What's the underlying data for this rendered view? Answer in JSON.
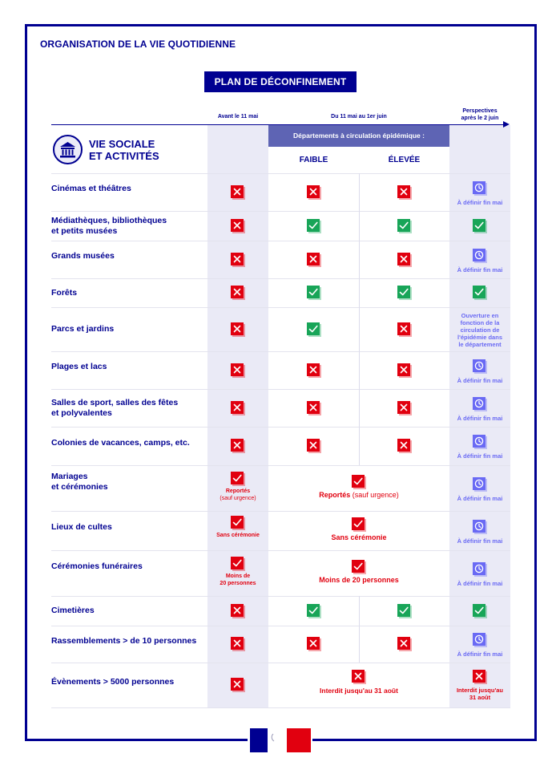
{
  "header": {
    "org_title": "ORGANISATION DE LA VIE QUOTIDIENNE",
    "plan_title": "PLAN DE DÉCONFINEMENT"
  },
  "columns": {
    "before": "Avant le 11 mai",
    "during": "Du 11 mai au 1er juin",
    "perspectives_line1": "Perspectives",
    "perspectives_line2": "après le 2 juin",
    "epidemic_header": "Départements à circulation épidémique :",
    "low": "FAIBLE",
    "high": "ÉLEVÉE"
  },
  "section": {
    "title_line1": "VIE SOCIALE",
    "title_line2": "ET ACTIVITÉS",
    "icon": "museum-building-icon"
  },
  "colors": {
    "blue": "#000091",
    "red": "#e1000f",
    "green": "#18a558",
    "perspective_blue": "#6a6af4"
  },
  "rows": [
    {
      "label1": "Cinémas et théâtres",
      "label2": "",
      "marks": [
        "no",
        "no",
        "no",
        "pending"
      ],
      "perspective_note": "À définir fin mai"
    },
    {
      "label1": "Médiathèques, bibliothèques",
      "label2": "et petits musées",
      "marks": [
        "no",
        "yes",
        "yes",
        "yes"
      ],
      "perspective_note": ""
    },
    {
      "label1": "Grands musées",
      "label2": "",
      "marks": [
        "no",
        "no",
        "no",
        "pending"
      ],
      "perspective_note": "À définir fin mai"
    },
    {
      "label1": "Forêts",
      "label2": "",
      "marks": [
        "no",
        "yes",
        "yes",
        "yes"
      ],
      "perspective_note": ""
    },
    {
      "label1": "Parcs et jardins",
      "label2": "",
      "marks": [
        "no",
        "yes",
        "no",
        "text"
      ],
      "perspective_note": "",
      "perspective_text": [
        "Ouverture en",
        "fonction de la",
        "circulation de",
        "l'épidémie dans",
        "le département"
      ]
    },
    {
      "label1": "Plages et lacs",
      "label2": "",
      "marks": [
        "no",
        "no",
        "no",
        "pending"
      ],
      "perspective_note": "À définir fin mai"
    },
    {
      "label1": "Salles de sport, salles des fêtes",
      "label2": "et polyvalentes",
      "marks": [
        "no",
        "no",
        "no",
        "pending"
      ],
      "perspective_note": "À définir fin mai"
    },
    {
      "label1": "Colonies de vacances, camps, etc.",
      "label2": "",
      "marks": [
        "no",
        "no",
        "no",
        "pending"
      ],
      "perspective_note": "À définir fin mai"
    },
    {
      "label1": "Mariages",
      "label2": "et cérémonies",
      "marks": [
        "partial",
        "partial-wide",
        "pending"
      ],
      "before_note1": "Reportés",
      "before_note2": "(sauf urgence)",
      "during_note_bold": "Reportés",
      "during_note_thin": " (sauf urgence)",
      "perspective_note": "À définir fin mai"
    },
    {
      "label1": "Lieux de cultes",
      "label2": "",
      "marks": [
        "partial",
        "partial-wide",
        "pending"
      ],
      "before_note1": "Sans cérémonie",
      "during_note_bold": "Sans cérémonie",
      "perspective_note": "À définir fin mai"
    },
    {
      "label1": "Cérémonies funéraires",
      "label2": "",
      "marks": [
        "partial",
        "partial-wide",
        "pending"
      ],
      "before_note1": "Moins de",
      "before_note2": "20 personnes",
      "during_note_bold": "Moins de 20 personnes",
      "perspective_note": "À définir fin mai"
    },
    {
      "label1": "Cimetières",
      "label2": "",
      "marks": [
        "no",
        "yes",
        "yes",
        "yes"
      ],
      "perspective_note": ""
    },
    {
      "label1": "Rassemblements > de 10 personnes",
      "label2": "",
      "marks": [
        "no",
        "no",
        "no",
        "pending"
      ],
      "perspective_note": "À définir fin mai"
    },
    {
      "label1": "Évènements > 5000 personnes",
      "label2": "",
      "marks": [
        "no",
        "no-wide",
        "no"
      ],
      "during_note_bold": "Interdit jusqu'au 31 août",
      "perspective_note1": "Interdit jusqu'au",
      "perspective_note2": "31 août"
    }
  ]
}
